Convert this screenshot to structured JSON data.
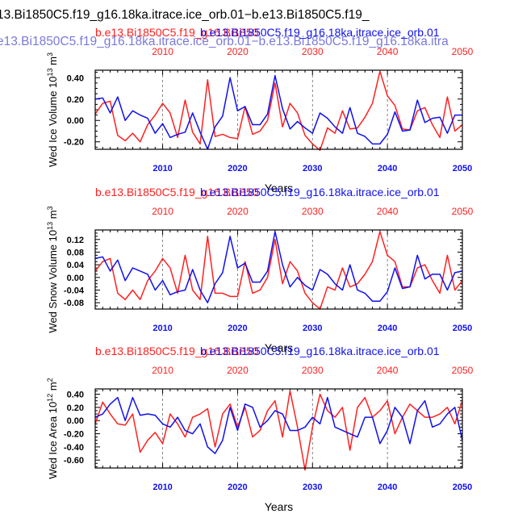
{
  "colors": {
    "red": "#ff2020",
    "blue": "#1010ee",
    "black": "#000000",
    "grid": "#666666"
  },
  "header": {
    "line1": "13.Bi1850C5.f19_g16.18ka.itrace.ice_orb.01−b.e13.Bi1850C5.f19_",
    "line2": "e13.Bi1850C5.f19_g16.18ka.itrace.ice_orb.01−b.e13.Bi1850C5.f19_g16.18ka.itra"
  },
  "chart_data": [
    {
      "type": "line",
      "title_red": "b.e13.Bi1850C5.f19_g16.Bi1850",
      "title_blue": "b.e13.Bi1850C5.f19_g16.18ka.itrace.ice_orb.01",
      "ylabel": "Wed Ice Volume 10",
      "ylabel_exp": "13",
      "ylabel_unit": " m",
      "ylabel_unit_exp": "3",
      "xlabel": "Years",
      "xlim": [
        2001,
        2050
      ],
      "ylim": [
        -0.27,
        0.47
      ],
      "yticks": [
        -0.2,
        0.0,
        0.2,
        0.4
      ],
      "ytick_labels": [
        "-0.20",
        "0.00",
        "0.20",
        "0.40"
      ],
      "xticks": [
        2010,
        2020,
        2030,
        2040,
        2050
      ],
      "xtick_labels": [
        "2010",
        "2020",
        "2030",
        "2040",
        "2050"
      ],
      "x": [
        2001,
        2002,
        2003,
        2004,
        2005,
        2006,
        2007,
        2008,
        2009,
        2010,
        2011,
        2012,
        2013,
        2014,
        2015,
        2016,
        2017,
        2018,
        2019,
        2020,
        2021,
        2022,
        2023,
        2024,
        2025,
        2026,
        2027,
        2028,
        2029,
        2030,
        2031,
        2032,
        2033,
        2034,
        2035,
        2036,
        2037,
        2038,
        2039,
        2040,
        2041,
        2042,
        2043,
        2044,
        2045,
        2046,
        2047,
        2048,
        2049,
        2050
      ],
      "series": [
        {
          "name": "b.e13.Bi1850C5.f19_g16.Bi1850",
          "color": "red",
          "values": [
            0.06,
            0.16,
            0.18,
            -0.14,
            -0.19,
            -0.12,
            -0.2,
            -0.04,
            0.05,
            0.16,
            0.07,
            -0.16,
            0.19,
            -0.11,
            -0.22,
            0.38,
            -0.15,
            -0.13,
            -0.16,
            -0.17,
            0.13,
            -0.13,
            -0.1,
            0.0,
            0.35,
            -0.06,
            0.16,
            0.07,
            -0.14,
            -0.22,
            -0.28,
            -0.07,
            -0.12,
            0.09,
            -0.08,
            -0.07,
            0.03,
            0.16,
            0.46,
            0.23,
            0.14,
            -0.08,
            -0.09,
            0.09,
            0.12,
            -0.04,
            -0.16,
            0.22,
            -0.1,
            -0.04
          ]
        },
        {
          "name": "b.e13.Bi1850C5.f19_g16.18ka.itrace.ice_orb.01",
          "color": "blue",
          "values": [
            0.2,
            0.21,
            0.07,
            0.22,
            0.0,
            0.09,
            0.05,
            0.02,
            -0.12,
            -0.03,
            -0.16,
            -0.13,
            -0.11,
            0.07,
            -0.11,
            -0.27,
            -0.06,
            0.04,
            0.4,
            0.09,
            0.13,
            -0.04,
            -0.04,
            0.06,
            0.42,
            0.11,
            -0.08,
            -0.01,
            -0.07,
            -0.12,
            0.07,
            0.02,
            -0.06,
            -0.12,
            0.12,
            -0.12,
            -0.15,
            -0.22,
            -0.22,
            -0.13,
            0.08,
            -0.1,
            -0.09,
            0.19,
            -0.02,
            0.02,
            0.03,
            -0.12,
            0.05,
            0.05
          ]
        }
      ]
    },
    {
      "type": "line",
      "title_red": "b.e13.Bi1850C5.f19_g16.Bi1850",
      "title_blue": "b.e13.Bi1850C5.f19_g16.18ka.itrace.ice_orb.01",
      "ylabel": "Wed Snow Volume 10",
      "ylabel_exp": "13",
      "ylabel_unit": " m",
      "ylabel_unit_exp": "3",
      "xlabel": "Years",
      "xlim": [
        2001,
        2050
      ],
      "ylim": [
        -0.1,
        0.15
      ],
      "yticks": [
        -0.08,
        -0.04,
        0.0,
        0.04,
        0.08,
        0.12
      ],
      "ytick_labels": [
        "-0.08",
        "-0.04",
        "0.00",
        "0.04",
        "0.08",
        "0.12"
      ],
      "xticks": [
        2010,
        2020,
        2030,
        2040,
        2050
      ],
      "xtick_labels": [
        "2010",
        "2020",
        "2030",
        "2040",
        "2050"
      ],
      "x": [
        2001,
        2002,
        2003,
        2004,
        2005,
        2006,
        2007,
        2008,
        2009,
        2010,
        2011,
        2012,
        2013,
        2014,
        2015,
        2016,
        2017,
        2018,
        2019,
        2020,
        2021,
        2022,
        2023,
        2024,
        2025,
        2026,
        2027,
        2028,
        2029,
        2030,
        2031,
        2032,
        2033,
        2034,
        2035,
        2036,
        2037,
        2038,
        2039,
        2040,
        2041,
        2042,
        2043,
        2044,
        2045,
        2046,
        2047,
        2048,
        2049,
        2050
      ],
      "series": [
        {
          "name": "b.e13.Bi1850C5.f19_g16.Bi1850",
          "color": "red",
          "values": [
            0.02,
            0.05,
            0.06,
            -0.05,
            -0.07,
            -0.04,
            -0.07,
            -0.01,
            0.02,
            0.06,
            0.03,
            -0.05,
            0.07,
            -0.04,
            -0.07,
            0.13,
            -0.05,
            -0.05,
            -0.06,
            -0.06,
            0.05,
            -0.05,
            -0.04,
            0.0,
            0.12,
            -0.02,
            0.05,
            0.02,
            -0.05,
            -0.08,
            -0.1,
            -0.03,
            -0.04,
            0.03,
            -0.03,
            -0.02,
            0.01,
            0.05,
            0.145,
            0.07,
            0.05,
            -0.03,
            -0.03,
            0.03,
            0.04,
            -0.01,
            -0.05,
            0.07,
            -0.04,
            -0.01
          ]
        },
        {
          "name": "b.e13.Bi1850C5.f19_g16.18ka.itrace.ice_orb.01",
          "color": "blue",
          "values": [
            0.06,
            0.065,
            0.02,
            0.055,
            -0.01,
            0.03,
            0.02,
            0.01,
            -0.04,
            -0.01,
            -0.055,
            -0.045,
            -0.04,
            0.025,
            -0.04,
            -0.08,
            -0.02,
            0.015,
            0.13,
            0.03,
            0.045,
            -0.015,
            -0.015,
            0.02,
            0.145,
            0.04,
            -0.03,
            0.0,
            -0.025,
            -0.04,
            0.025,
            0.01,
            -0.02,
            -0.04,
            0.04,
            -0.04,
            -0.05,
            -0.075,
            -0.075,
            -0.045,
            0.03,
            -0.035,
            -0.03,
            0.07,
            -0.005,
            0.01,
            0.01,
            -0.04,
            0.015,
            0.02
          ]
        }
      ]
    },
    {
      "type": "line",
      "title_red": "b.e13.Bi1850C5.f19_g16.Bi1850",
      "title_blue": "b.e13.Bi1850C5.f19_g16.18ka.itrace.ice_orb.01",
      "ylabel": "Wed Ice Area 10",
      "ylabel_exp": "12",
      "ylabel_unit": " m",
      "ylabel_unit_exp": "2",
      "xlabel": "Years",
      "xlim": [
        2001,
        2050
      ],
      "ylim": [
        -0.72,
        0.48
      ],
      "yticks": [
        -0.6,
        -0.4,
        -0.2,
        0.0,
        0.2,
        0.4
      ],
      "ytick_labels": [
        "-0.60",
        "-0.40",
        "-0.20",
        "0.00",
        "0.20",
        "0.40"
      ],
      "xticks": [
        2010,
        2020,
        2030,
        2040,
        2050
      ],
      "xtick_labels": [
        "2010",
        "2020",
        "2030",
        "2040",
        "2050"
      ],
      "x": [
        2001,
        2002,
        2003,
        2004,
        2005,
        2006,
        2007,
        2008,
        2009,
        2010,
        2011,
        2012,
        2013,
        2014,
        2015,
        2016,
        2017,
        2018,
        2019,
        2020,
        2021,
        2022,
        2023,
        2024,
        2025,
        2026,
        2027,
        2028,
        2029,
        2030,
        2031,
        2032,
        2033,
        2034,
        2035,
        2036,
        2037,
        2038,
        2039,
        2040,
        2041,
        2042,
        2043,
        2044,
        2045,
        2046,
        2047,
        2048,
        2049,
        2050
      ],
      "series": [
        {
          "name": "b.e13.Bi1850C5.f19_g16.Bi1850",
          "color": "red",
          "values": [
            -0.05,
            0.28,
            0.1,
            -0.05,
            -0.07,
            0.1,
            -0.48,
            -0.3,
            -0.18,
            -0.35,
            0.1,
            -0.05,
            -0.25,
            0.05,
            0.1,
            0.18,
            -0.4,
            0.1,
            0.25,
            -0.1,
            0.2,
            -0.25,
            -0.15,
            0.15,
            0.3,
            -0.25,
            0.45,
            -0.1,
            -0.75,
            -0.1,
            0.4,
            0.15,
            0.05,
            0.2,
            -0.45,
            0.2,
            0.35,
            0.05,
            0.15,
            0.3,
            -0.2,
            0.05,
            0.25,
            0.15,
            0.05,
            0.05,
            0.1,
            0.2,
            -0.05,
            0.3
          ]
        },
        {
          "name": "b.e13.Bi1850C5.f19_g16.18ka.itrace.ice_orb.01",
          "color": "blue",
          "values": [
            0.05,
            0.1,
            0.25,
            0.35,
            0.0,
            0.35,
            0.08,
            0.1,
            0.08,
            -0.05,
            -0.1,
            0.05,
            -0.15,
            -0.2,
            -0.05,
            -0.4,
            -0.5,
            -0.3,
            0.2,
            -0.15,
            0.25,
            0.2,
            -0.1,
            0.0,
            0.15,
            0.1,
            -0.15,
            -0.15,
            -0.1,
            0.05,
            -0.05,
            0.35,
            -0.1,
            -0.15,
            -0.2,
            -0.25,
            0.05,
            0.05,
            -0.35,
            -0.15,
            0.2,
            0.05,
            -0.35,
            0.15,
            0.3,
            -0.1,
            -0.05,
            0.1,
            0.2,
            -0.3
          ]
        }
      ]
    }
  ]
}
